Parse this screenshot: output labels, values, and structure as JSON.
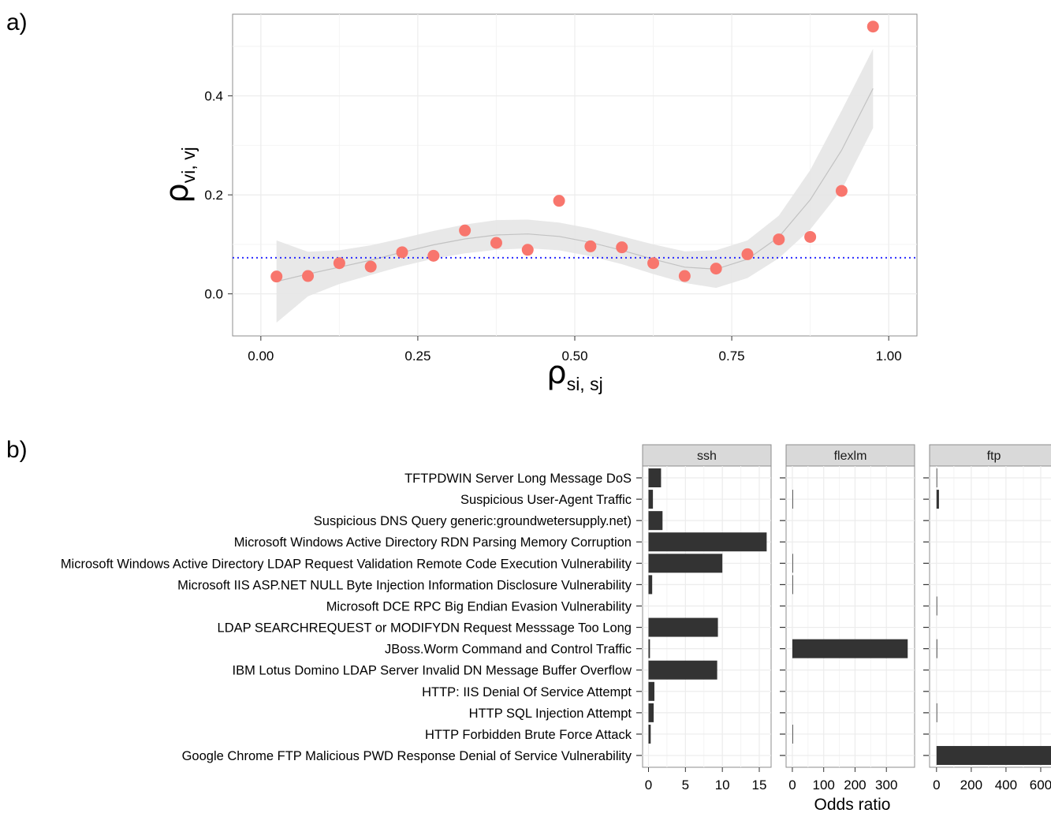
{
  "panel_labels": {
    "a": "a)",
    "b": "b)"
  },
  "colors": {
    "point": "#f8766d",
    "band": "#e5e5e5",
    "fit_line": "#c2c2c2",
    "reference_line": "#2b2bff",
    "bar": "#333333",
    "strip_fill": "#d9d9d9",
    "grid": "#ececec",
    "panel_border": "#8c8c8c"
  },
  "chart_data": [
    {
      "type": "scatter",
      "xlabel": "ρ",
      "xlabel_sub": "si, sj",
      "ylabel": "ρ",
      "ylabel_sub": "vi, vj",
      "xlim": [
        -0.045,
        1.045
      ],
      "ylim": [
        -0.085,
        0.565
      ],
      "x_ticks": [
        {
          "value": 0.0,
          "label": "0.00"
        },
        {
          "value": 0.25,
          "label": "0.25"
        },
        {
          "value": 0.5,
          "label": "0.50"
        },
        {
          "value": 0.75,
          "label": "0.75"
        },
        {
          "value": 1.0,
          "label": "1.00"
        }
      ],
      "y_ticks": [
        {
          "value": 0.0,
          "label": "0.0"
        },
        {
          "value": 0.2,
          "label": "0.2"
        },
        {
          "value": 0.4,
          "label": "0.4"
        }
      ],
      "grid": true,
      "points": [
        {
          "x": 0.025,
          "y": 0.035
        },
        {
          "x": 0.075,
          "y": 0.036
        },
        {
          "x": 0.125,
          "y": 0.062
        },
        {
          "x": 0.175,
          "y": 0.055
        },
        {
          "x": 0.225,
          "y": 0.084
        },
        {
          "x": 0.275,
          "y": 0.077
        },
        {
          "x": 0.325,
          "y": 0.128
        },
        {
          "x": 0.375,
          "y": 0.103
        },
        {
          "x": 0.425,
          "y": 0.089
        },
        {
          "x": 0.475,
          "y": 0.188
        },
        {
          "x": 0.525,
          "y": 0.096
        },
        {
          "x": 0.575,
          "y": 0.094
        },
        {
          "x": 0.625,
          "y": 0.062
        },
        {
          "x": 0.675,
          "y": 0.036
        },
        {
          "x": 0.725,
          "y": 0.051
        },
        {
          "x": 0.775,
          "y": 0.08
        },
        {
          "x": 0.825,
          "y": 0.11
        },
        {
          "x": 0.875,
          "y": 0.115
        },
        {
          "x": 0.925,
          "y": 0.208
        },
        {
          "x": 0.975,
          "y": 0.54
        }
      ],
      "smooth_fit": [
        {
          "x": 0.025,
          "y": 0.025,
          "lo": -0.058,
          "hi": 0.108
        },
        {
          "x": 0.075,
          "y": 0.04,
          "lo": -0.005,
          "hi": 0.085
        },
        {
          "x": 0.125,
          "y": 0.054,
          "lo": 0.02,
          "hi": 0.088
        },
        {
          "x": 0.175,
          "y": 0.068,
          "lo": 0.038,
          "hi": 0.098
        },
        {
          "x": 0.225,
          "y": 0.084,
          "lo": 0.056,
          "hi": 0.112
        },
        {
          "x": 0.275,
          "y": 0.099,
          "lo": 0.071,
          "hi": 0.127
        },
        {
          "x": 0.325,
          "y": 0.111,
          "lo": 0.082,
          "hi": 0.14
        },
        {
          "x": 0.375,
          "y": 0.119,
          "lo": 0.089,
          "hi": 0.149
        },
        {
          "x": 0.425,
          "y": 0.121,
          "lo": 0.092,
          "hi": 0.15
        },
        {
          "x": 0.475,
          "y": 0.116,
          "lo": 0.088,
          "hi": 0.144
        },
        {
          "x": 0.525,
          "y": 0.104,
          "lo": 0.076,
          "hi": 0.132
        },
        {
          "x": 0.575,
          "y": 0.088,
          "lo": 0.06,
          "hi": 0.116
        },
        {
          "x": 0.625,
          "y": 0.07,
          "lo": 0.04,
          "hi": 0.1
        },
        {
          "x": 0.675,
          "y": 0.054,
          "lo": 0.022,
          "hi": 0.086
        },
        {
          "x": 0.725,
          "y": 0.05,
          "lo": 0.012,
          "hi": 0.088
        },
        {
          "x": 0.775,
          "y": 0.07,
          "lo": 0.032,
          "hi": 0.108
        },
        {
          "x": 0.825,
          "y": 0.115,
          "lo": 0.072,
          "hi": 0.158
        },
        {
          "x": 0.875,
          "y": 0.19,
          "lo": 0.13,
          "hi": 0.25
        },
        {
          "x": 0.925,
          "y": 0.29,
          "lo": 0.21,
          "hi": 0.37
        },
        {
          "x": 0.975,
          "y": 0.415,
          "lo": 0.335,
          "hi": 0.495
        }
      ],
      "hline": 0.073
    },
    {
      "type": "bar",
      "orientation": "horizontal",
      "xlabel": "Odds ratio",
      "categories": [
        "TFTPDWIN Server Long Message DoS",
        "Suspicious User-Agent Traffic",
        "Suspicious DNS Query generic:groundwetersupply.net)",
        "Microsoft Windows Active Directory RDN Parsing Memory Corruption",
        "Microsoft Windows Active Directory LDAP Request Validation Remote Code Execution Vulnerability",
        "Microsoft IIS ASP.NET NULL Byte Injection Information Disclosure Vulnerability",
        "Microsoft DCE RPC Big Endian Evasion Vulnerability",
        "LDAP SEARCHREQUEST or MODIFYDN Request Messsage Too Long",
        "JBoss.Worm Command and Control Traffic",
        "IBM Lotus Domino LDAP Server Invalid DN Message Buffer Overflow",
        "HTTP: IIS Denial Of Service Attempt",
        "HTTP SQL Injection Attempt",
        "HTTP Forbidden Brute Force Attack",
        "Google Chrome FTP Malicious PWD Response Denial of Service Vulnerability"
      ],
      "facets": [
        {
          "name": "ssh",
          "xlim": [
            -0.8,
            16.6
          ],
          "ticks": [
            {
              "value": 0,
              "label": "0"
            },
            {
              "value": 5,
              "label": "5"
            },
            {
              "value": 10,
              "label": "10"
            },
            {
              "value": 15,
              "label": "15"
            }
          ],
          "values": [
            1.7,
            0.6,
            1.9,
            16.0,
            10.0,
            0.5,
            0,
            9.4,
            0.2,
            9.3,
            0.8,
            0.7,
            0.3,
            0
          ]
        },
        {
          "name": "flexlm",
          "xlim": [
            -20,
            390
          ],
          "ticks": [
            {
              "value": 0,
              "label": "0"
            },
            {
              "value": 100,
              "label": "100"
            },
            {
              "value": 200,
              "label": "200"
            },
            {
              "value": 300,
              "label": "300"
            }
          ],
          "values": [
            0,
            1,
            0,
            0,
            1,
            2,
            0,
            0,
            368,
            0,
            0,
            0,
            1,
            0
          ]
        },
        {
          "name": "ftp",
          "xlim": [
            -40,
            700
          ],
          "ticks": [
            {
              "value": 0,
              "label": "0"
            },
            {
              "value": 200,
              "label": "200"
            },
            {
              "value": 400,
              "label": "400"
            },
            {
              "value": 600,
              "label": "600"
            }
          ],
          "values": [
            2,
            14,
            0,
            0,
            0,
            0,
            2,
            0,
            4,
            0,
            0,
            2,
            0,
            700
          ]
        }
      ]
    }
  ]
}
